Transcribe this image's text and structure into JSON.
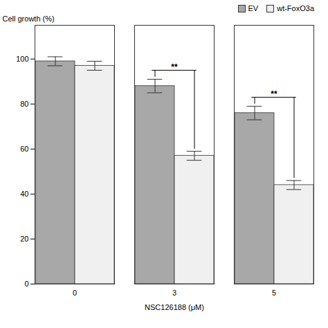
{
  "chart_data": {
    "type": "bar",
    "xlabel": "NSC126188 (μM)",
    "ylabel": "Cell growth (%)",
    "categories": [
      "0",
      "3",
      "5"
    ],
    "series": [
      {
        "name": "EV",
        "color": "#a8a8a8",
        "values": [
          99,
          88,
          76
        ],
        "errors": [
          2,
          3,
          3
        ]
      },
      {
        "name": "wt-FoxO3a",
        "color": "#f0f0f0",
        "values": [
          97,
          57,
          44
        ],
        "errors": [
          2,
          2,
          2
        ]
      }
    ],
    "ylim": [
      0,
      115
    ],
    "yticks": [
      0,
      20,
      40,
      60,
      80,
      100
    ],
    "legend": "upper right",
    "annotations": [
      {
        "text": "**",
        "category": "3",
        "between": [
          "EV",
          "wt-FoxO3a"
        ]
      },
      {
        "text": "**",
        "category": "5",
        "between": [
          "EV",
          "wt-FoxO3a"
        ]
      }
    ]
  }
}
